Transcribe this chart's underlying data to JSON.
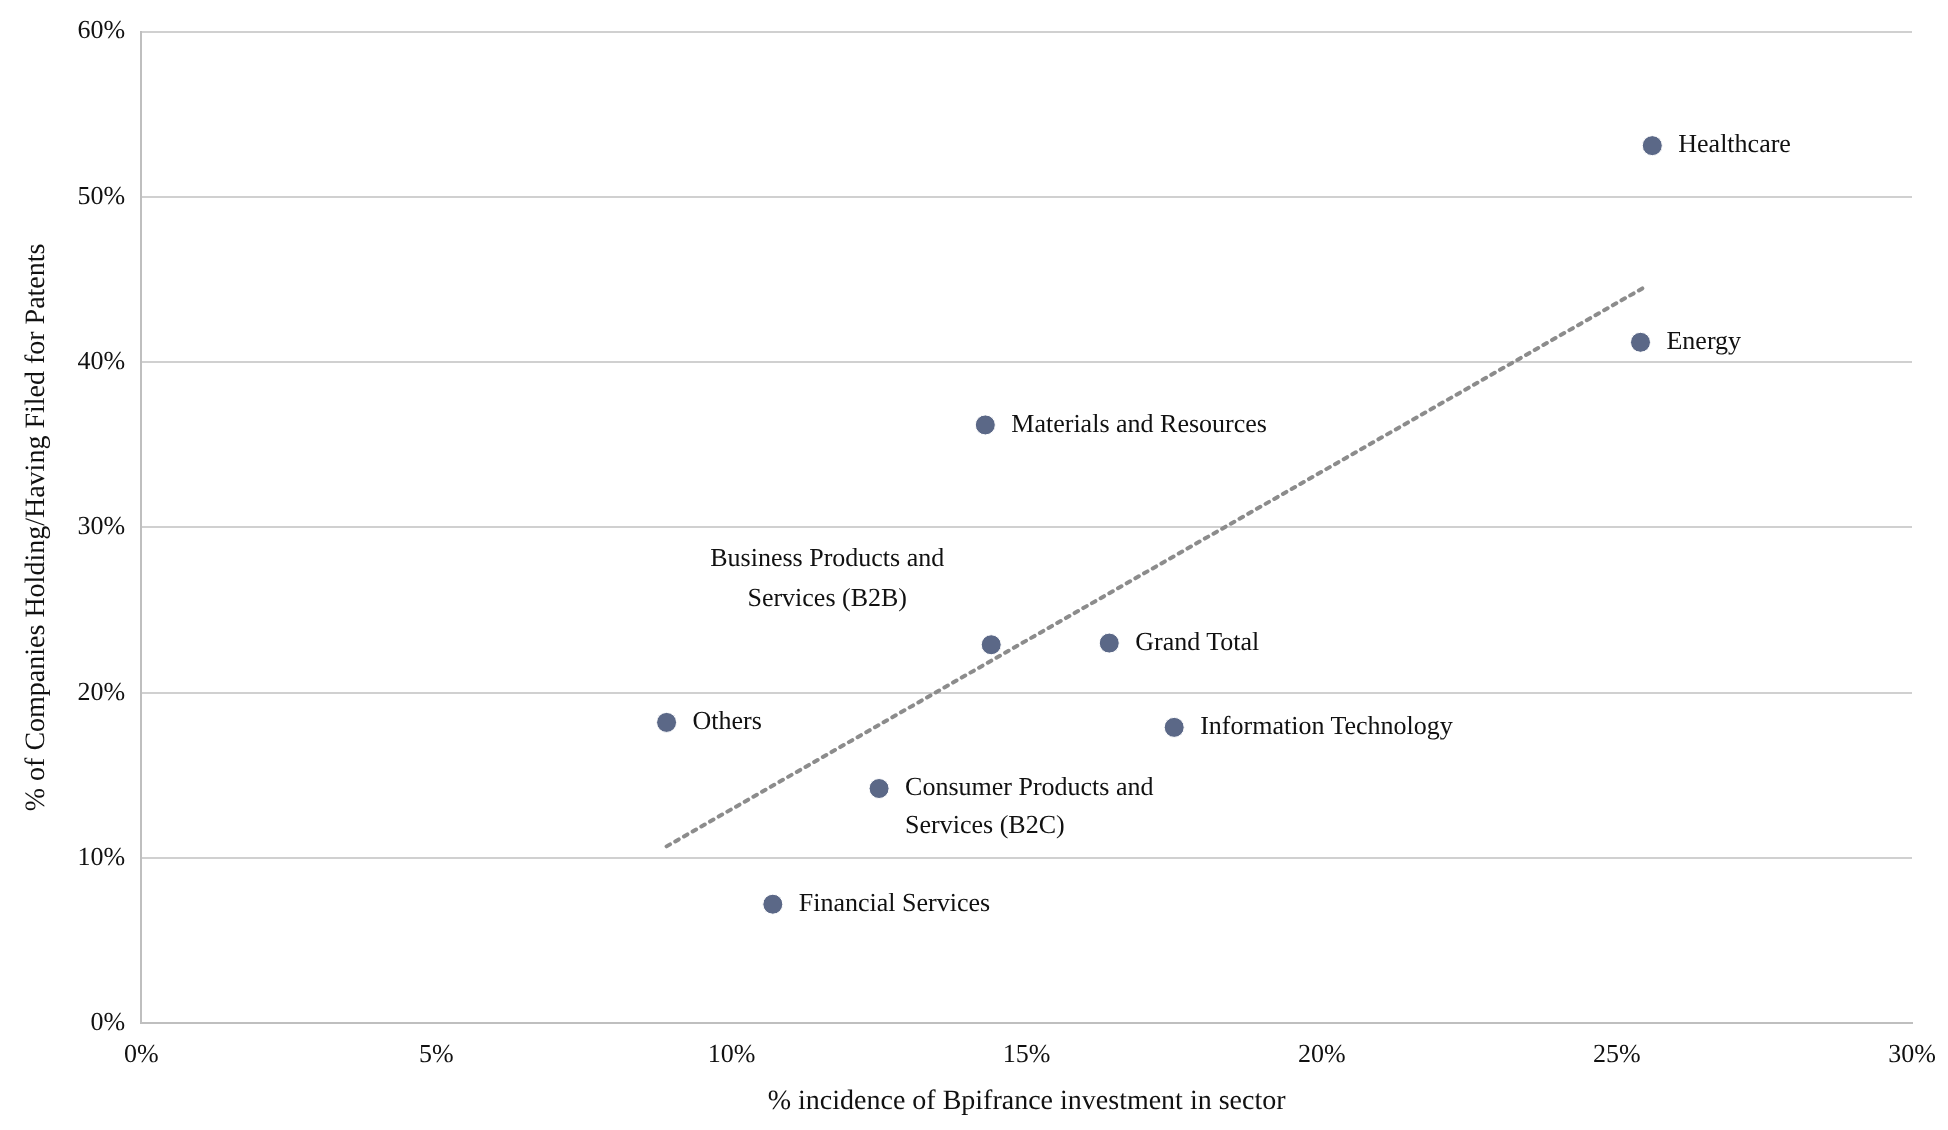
{
  "chart_data": {
    "type": "scatter",
    "xlabel": "% incidence of Bpifrance investment in sector",
    "ylabel": "% of Companies Holding/Having Filed for Patents",
    "xlim": [
      0,
      30
    ],
    "xticks": [
      {
        "value": 0,
        "label": "0%"
      },
      {
        "value": 5,
        "label": "5%"
      },
      {
        "value": 10,
        "label": "10%"
      },
      {
        "value": 15,
        "label": "15%"
      },
      {
        "value": 20,
        "label": "20%"
      },
      {
        "value": 25,
        "label": "25%"
      },
      {
        "value": 30,
        "label": "30%"
      }
    ],
    "ylim": [
      0,
      60
    ],
    "yticks": [
      {
        "value": 0,
        "label": "0%"
      },
      {
        "value": 10,
        "label": "10%"
      },
      {
        "value": 20,
        "label": "20%"
      },
      {
        "value": 30,
        "label": "30%"
      },
      {
        "value": 40,
        "label": "40%"
      },
      {
        "value": 50,
        "label": "50%"
      },
      {
        "value": 60,
        "label": "60%"
      }
    ],
    "grid": "y",
    "marker": "circle",
    "legend": false,
    "series": [
      {
        "color": "#5b6887",
        "x": [
          25.6,
          25.4,
          14.3,
          14.4,
          16.4,
          17.5,
          8.9,
          12.5,
          10.7
        ],
        "values": [
          53.1,
          41.2,
          36.2,
          22.9,
          23.0,
          17.9,
          18.2,
          14.2,
          7.2
        ]
      },
      {
        "type": "line",
        "color": "#8c8c8c",
        "line_style": "dotted",
        "marker": "none",
        "x": [
          8.9,
          25.5
        ],
        "values": [
          10.7,
          44.6
        ]
      }
    ],
    "annotations": [
      {
        "text": "Healthcare",
        "x": 25.6,
        "y": 53.1
      },
      {
        "text": "Energy",
        "x": 25.4,
        "y": 41.2
      },
      {
        "text": "Materials and Resources",
        "x": 14.3,
        "y": 36.2
      },
      {
        "text": "Business Products and Services (B2B)",
        "x": 14.4,
        "y": 22.9
      },
      {
        "text": "Grand Total",
        "x": 16.4,
        "y": 23.0
      },
      {
        "text": "Information Technology",
        "x": 17.5,
        "y": 17.9
      },
      {
        "text": "Others",
        "x": 8.9,
        "y": 18.2
      },
      {
        "text": "Consumer Products and Services (B2C)",
        "x": 12.5,
        "y": 14.2
      },
      {
        "text": "Financial Services",
        "x": 10.7,
        "y": 7.2
      }
    ]
  }
}
